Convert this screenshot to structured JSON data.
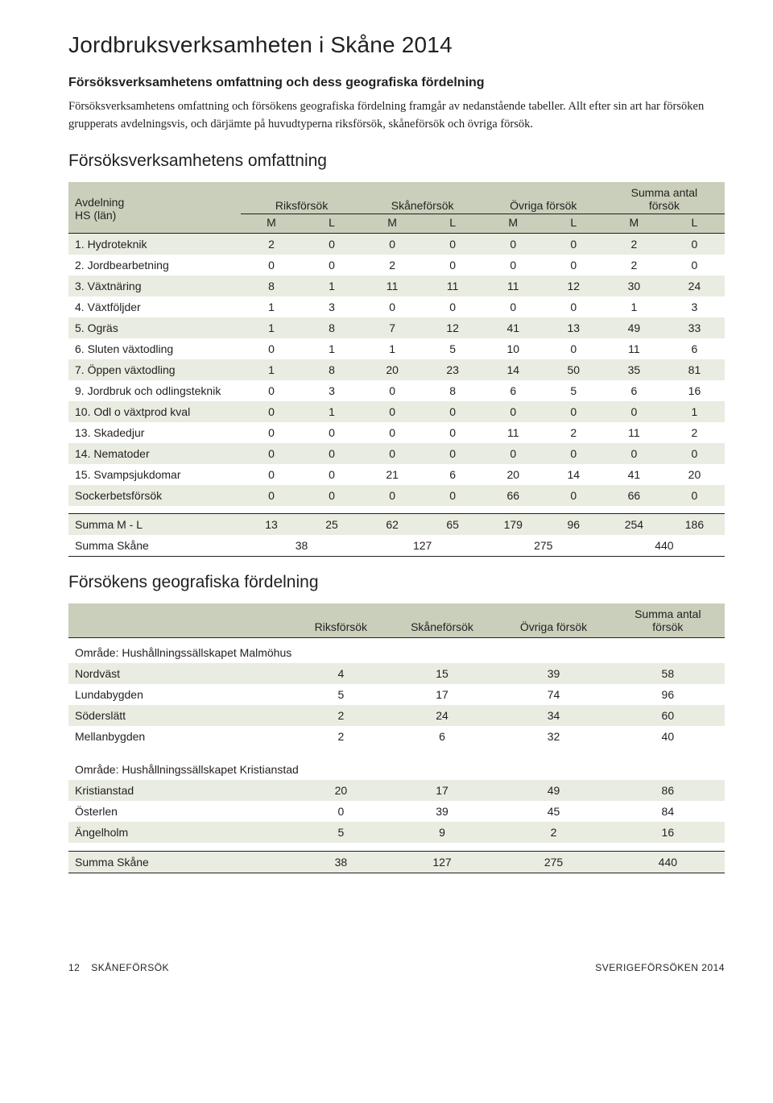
{
  "title": "Jordbruksverksamheten i Skåne 2014",
  "subtitle": "Försöksverksamhetens omfattning och dess geografiska fördelning",
  "intro": "Försöksverksamhetens omfattning och försökens geografiska fördelning framgår av nedanstående tabeller. Allt efter sin art har försöken grupperats avdelningsvis, och därjämte på huvudtyperna riksförsök, skåneförsök och övriga försök.",
  "section1_title": "Försöksverksamhetens omfattning",
  "section2_title": "Försökens geografiska fördelning",
  "table1": {
    "row_header": [
      "Avdelning",
      "HS (län)"
    ],
    "groups": [
      "Riksförsök",
      "Skåneförsök",
      "Övriga försök",
      "Summa antal försök"
    ],
    "sub": [
      "M",
      "L",
      "M",
      "L",
      "M",
      "L",
      "M",
      "L"
    ],
    "rows": [
      {
        "label": "1. Hydroteknik",
        "v": [
          2,
          0,
          0,
          0,
          0,
          0,
          2,
          0
        ]
      },
      {
        "label": "2. Jordbearbetning",
        "v": [
          0,
          0,
          2,
          0,
          0,
          0,
          2,
          0
        ]
      },
      {
        "label": "3. Växtnäring",
        "v": [
          8,
          1,
          11,
          11,
          11,
          12,
          30,
          24
        ]
      },
      {
        "label": "4. Växtföljder",
        "v": [
          1,
          3,
          0,
          0,
          0,
          0,
          1,
          3
        ]
      },
      {
        "label": "5. Ogräs",
        "v": [
          1,
          8,
          7,
          12,
          41,
          13,
          49,
          33
        ]
      },
      {
        "label": "6. Sluten växtodling",
        "v": [
          0,
          1,
          1,
          5,
          10,
          0,
          11,
          6
        ]
      },
      {
        "label": "7. Öppen växtodling",
        "v": [
          1,
          8,
          20,
          23,
          14,
          50,
          35,
          81
        ]
      },
      {
        "label": "9. Jordbruk och odlingsteknik",
        "v": [
          0,
          3,
          0,
          8,
          6,
          5,
          6,
          16
        ]
      },
      {
        "label": "10. Odl o växtprod kval",
        "v": [
          0,
          1,
          0,
          0,
          0,
          0,
          0,
          1
        ]
      },
      {
        "label": "13. Skadedjur",
        "v": [
          0,
          0,
          0,
          0,
          11,
          2,
          11,
          2
        ]
      },
      {
        "label": "14. Nematoder",
        "v": [
          0,
          0,
          0,
          0,
          0,
          0,
          0,
          0
        ]
      },
      {
        "label": "15. Svampsjukdomar",
        "v": [
          0,
          0,
          21,
          6,
          20,
          14,
          41,
          20
        ]
      },
      {
        "label": "Sockerbetsförsök",
        "v": [
          0,
          0,
          0,
          0,
          66,
          0,
          66,
          0
        ]
      }
    ],
    "summary_ml": {
      "label": "Summa M - L",
      "v": [
        13,
        25,
        62,
        65,
        179,
        96,
        254,
        186
      ]
    },
    "summary_skane": {
      "label": "Summa Skåne",
      "v": [
        38,
        127,
        275,
        440
      ]
    }
  },
  "table2": {
    "headers": [
      "Riksförsök",
      "Skåneförsök",
      "Övriga försök",
      "Summa antal försök"
    ],
    "section1": "Område: Hushållningssällskapet Malmöhus",
    "rows1": [
      {
        "label": "Nordväst",
        "v": [
          4,
          15,
          39,
          58
        ]
      },
      {
        "label": "Lundabygden",
        "v": [
          5,
          17,
          74,
          96
        ]
      },
      {
        "label": "Söderslätt",
        "v": [
          2,
          24,
          34,
          60
        ]
      },
      {
        "label": "Mellanbygden",
        "v": [
          2,
          6,
          32,
          40
        ]
      }
    ],
    "section2": "Område: Hushållningssällskapet Kristianstad",
    "rows2": [
      {
        "label": "Kristianstad",
        "v": [
          20,
          17,
          49,
          86
        ]
      },
      {
        "label": "Österlen",
        "v": [
          0,
          39,
          45,
          84
        ]
      },
      {
        "label": "Ängelholm",
        "v": [
          5,
          9,
          2,
          16
        ]
      }
    ],
    "summary": {
      "label": "Summa Skåne",
      "v": [
        38,
        127,
        275,
        440
      ]
    }
  },
  "footer": {
    "page": "12",
    "left": "SKÅNEFÖRSÖK",
    "right": "SVERIGEFÖRSÖKEN 2014"
  }
}
